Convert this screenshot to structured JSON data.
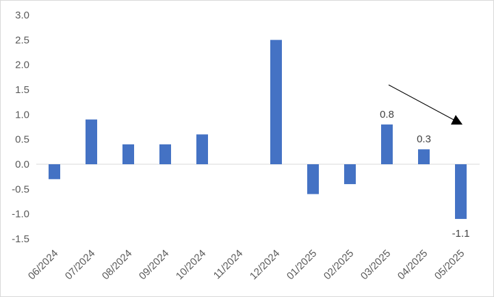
{
  "chart_data": {
    "type": "bar",
    "title": "",
    "xlabel": "",
    "ylabel": "",
    "categories": [
      "06/2024",
      "07/2024",
      "08/2024",
      "09/2024",
      "10/2024",
      "11/2024",
      "12/2024",
      "01/2025",
      "02/2025",
      "03/2025",
      "04/2025",
      "05/2025"
    ],
    "values": [
      -0.3,
      0.9,
      0.4,
      0.4,
      0.6,
      0,
      2.5,
      -0.6,
      -0.4,
      0.8,
      0.3,
      -1.1
    ],
    "ylim": [
      -1.5,
      3.0
    ],
    "yticks": [
      "3.0",
      "2.5",
      "2.0",
      "1.5",
      "1.0",
      "0.5",
      "0.0",
      "-0.5",
      "-1.0",
      "-1.5"
    ],
    "data_labels": [
      {
        "category": "03/2025",
        "text": "0.8"
      },
      {
        "category": "04/2025",
        "text": "0.3"
      },
      {
        "category": "05/2025",
        "text": "-1.1"
      }
    ],
    "grid": false,
    "legend": "none",
    "colors": {
      "bar": "#4472C4",
      "axis": "#d9d9d9",
      "text": "#595959",
      "arrow": "#000000"
    },
    "annotations": [
      {
        "type": "arrow",
        "description": "downward trend arrow pointing toward 05/2025"
      }
    ]
  }
}
